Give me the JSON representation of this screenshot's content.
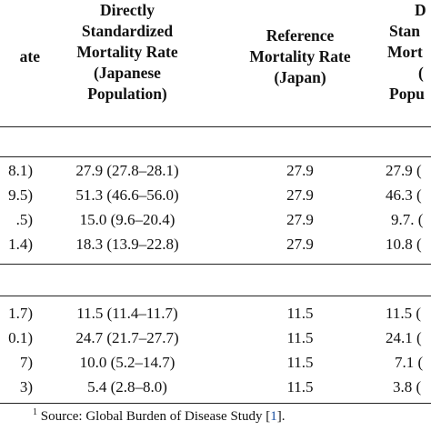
{
  "header": {
    "col0": "ate",
    "col1": [
      "Directly",
      "Standardized",
      "Mortality Rate",
      "(Japanese",
      "Population)"
    ],
    "col2": [
      "Reference",
      "Mortality Rate",
      "(Japan)"
    ],
    "col3": [
      "D",
      "Stan",
      "Mort",
      "(",
      "Popu"
    ]
  },
  "sections": [
    {
      "rows": [
        {
          "c0": "8.1)",
          "c1": "27.9 (27.8–28.1)",
          "c2": "27.9",
          "c3": "27.9 ("
        },
        {
          "c0": "9.5)",
          "c1": "51.3 (46.6–56.0)",
          "c2": "27.9",
          "c3": "46.3 ("
        },
        {
          "c0": ".5)",
          "c1": "15.0 (9.6–20.4)",
          "c2": "27.9",
          "c3": "9.7. ("
        },
        {
          "c0": "1.4)",
          "c1": "18.3 (13.9–22.8)",
          "c2": "27.9",
          "c3": "10.8 ("
        }
      ]
    },
    {
      "rows": [
        {
          "c0": "1.7)",
          "c1": "11.5 (11.4–11.7)",
          "c2": "11.5",
          "c3": "11.5 ("
        },
        {
          "c0": "0.1)",
          "c1": "24.7 (21.7–27.7)",
          "c2": "11.5",
          "c3": "24.1 ("
        },
        {
          "c0": "7)",
          "c1": "10.0 (5.2–14.7)",
          "c2": "11.5",
          "c3": "7.1 ("
        },
        {
          "c0": "3)",
          "c1": "5.4 (2.8–8.0)",
          "c2": "11.5",
          "c3": "3.8 ("
        }
      ]
    }
  ],
  "footnote": {
    "marker": "1",
    "text": " Source: Global Burden of Disease Study [",
    "ref": "1",
    "close": "]."
  }
}
